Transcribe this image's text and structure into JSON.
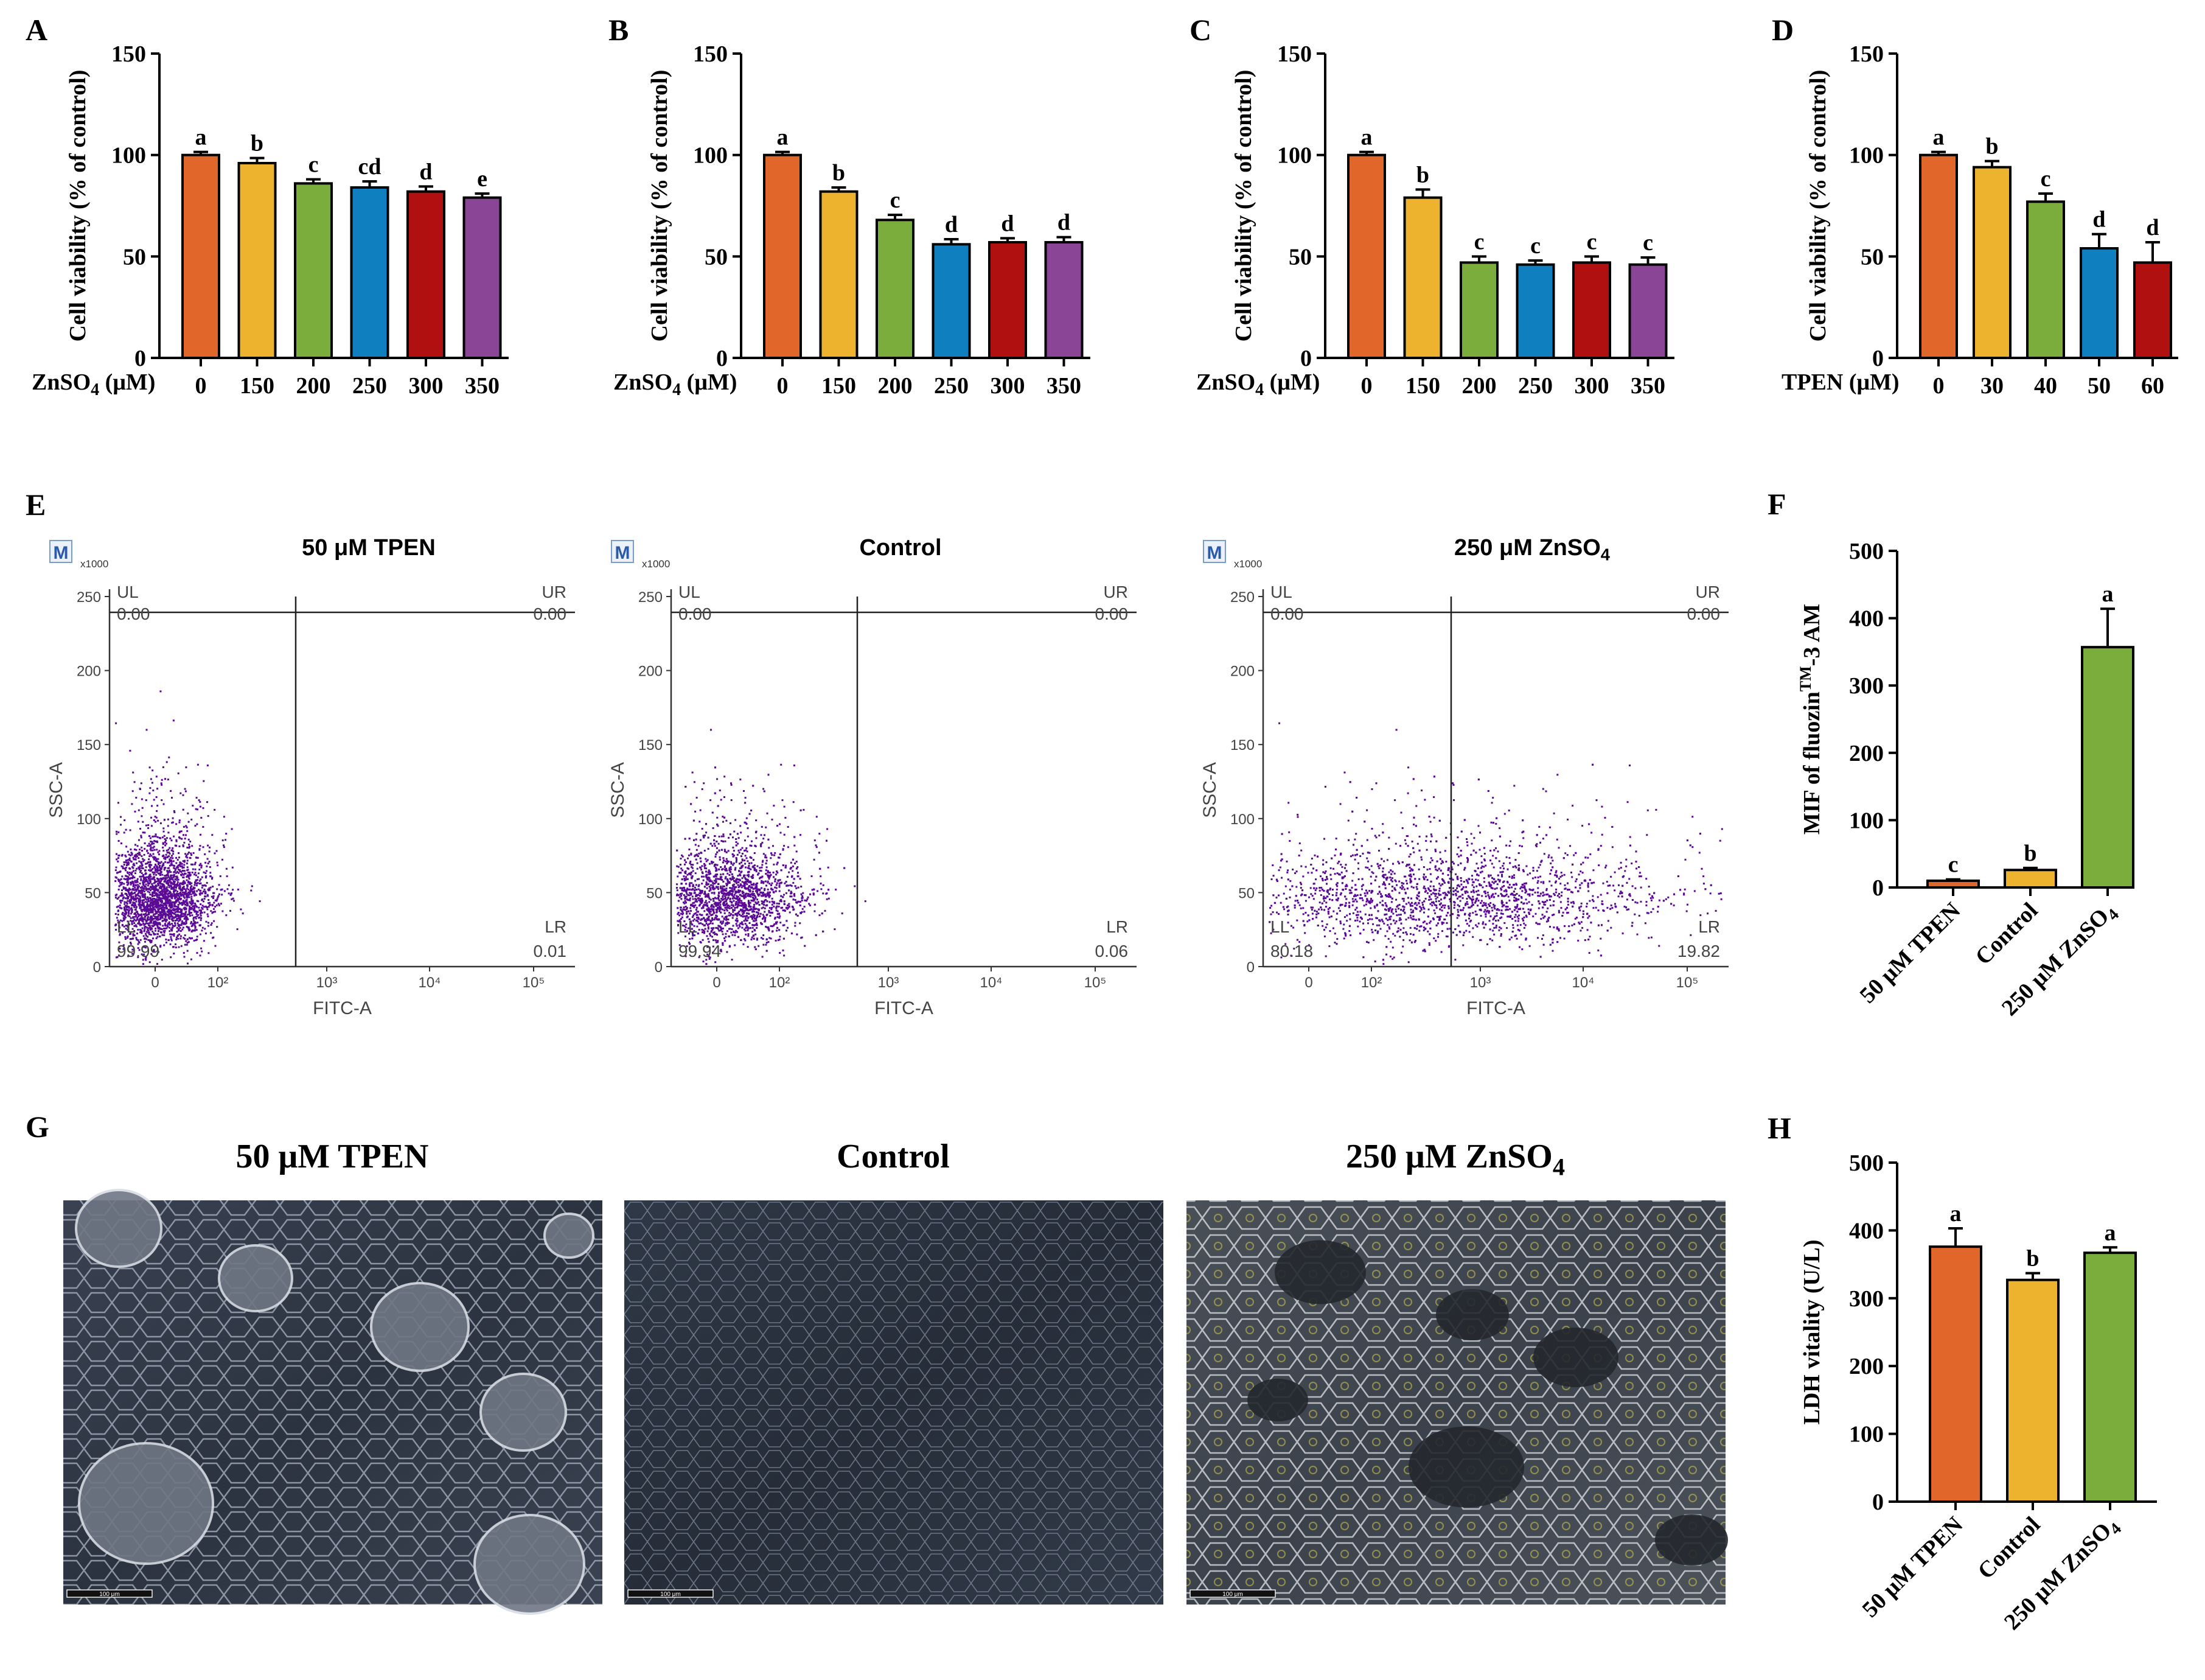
{
  "figure": {
    "colors": {
      "orange": "#E0662A",
      "yellow": "#EDB32F",
      "green": "#7AAD3B",
      "blue": "#0F7FC0",
      "red": "#B0100F",
      "purple": "#8A4596",
      "dot": "#5B0A96",
      "axis": "#000000"
    }
  },
  "chart_data": [
    {
      "panel": "A",
      "type": "bar",
      "xlabel": "ZnSO4 (μM)",
      "ylabel": "Cell viability (% of control)",
      "ylim": [
        0,
        150
      ],
      "yticks": [
        "0",
        "50",
        "100",
        "150"
      ],
      "categories": [
        "0",
        "150",
        "200",
        "250",
        "300",
        "350"
      ],
      "values": [
        100,
        96,
        86,
        84,
        82,
        79
      ],
      "errors": [
        1.5,
        2.5,
        2,
        3,
        2.5,
        2
      ],
      "labels": [
        "a",
        "b",
        "c",
        "cd",
        "d",
        "e"
      ],
      "colors": [
        "orange",
        "yellow",
        "green",
        "blue",
        "red",
        "purple"
      ]
    },
    {
      "panel": "B",
      "type": "bar",
      "xlabel": "ZnSO4 (μM)",
      "ylabel": "Cell viability (% of control)",
      "ylim": [
        0,
        150
      ],
      "yticks": [
        "0",
        "50",
        "100",
        "150"
      ],
      "categories": [
        "0",
        "150",
        "200",
        "250",
        "300",
        "350"
      ],
      "values": [
        100,
        82,
        68,
        56,
        57,
        57
      ],
      "errors": [
        1.5,
        2,
        2.5,
        2.5,
        2,
        2.5
      ],
      "labels": [
        "a",
        "b",
        "c",
        "d",
        "d",
        "d"
      ],
      "colors": [
        "orange",
        "yellow",
        "green",
        "blue",
        "red",
        "purple"
      ]
    },
    {
      "panel": "C",
      "type": "bar",
      "xlabel": "ZnSO4 (μM)",
      "ylabel": "Cell viability (% of control)",
      "ylim": [
        0,
        150
      ],
      "yticks": [
        "0",
        "50",
        "100",
        "150"
      ],
      "categories": [
        "0",
        "150",
        "200",
        "250",
        "300",
        "350"
      ],
      "values": [
        100,
        79,
        47,
        46,
        47,
        46
      ],
      "errors": [
        1.5,
        4,
        3,
        2,
        3,
        3.5
      ],
      "labels": [
        "a",
        "b",
        "c",
        "c",
        "c",
        "c"
      ],
      "colors": [
        "orange",
        "yellow",
        "green",
        "blue",
        "red",
        "purple"
      ]
    },
    {
      "panel": "D",
      "type": "bar",
      "xlabel": "TPEN (μM)",
      "ylabel": "Cell viability (% of control)",
      "ylim": [
        0,
        150
      ],
      "yticks": [
        "0",
        "50",
        "100",
        "150"
      ],
      "categories": [
        "0",
        "30",
        "40",
        "50",
        "60"
      ],
      "values": [
        100,
        94,
        77,
        54,
        47
      ],
      "errors": [
        1.5,
        3,
        4,
        7,
        10
      ],
      "labels": [
        "a",
        "b",
        "c",
        "d",
        "d"
      ],
      "colors": [
        "orange",
        "yellow",
        "green",
        "blue",
        "red"
      ]
    },
    {
      "panel": "E",
      "type": "scatter",
      "subplots": [
        {
          "title": "50 μM TPEN",
          "UL": "0.00",
          "UR": "0.00",
          "LL": "99.99",
          "LR": "0.01",
          "spread": "narrow"
        },
        {
          "title": "Control",
          "UL": "0.00",
          "UR": "0.00",
          "LL": "99.94",
          "LR": "0.06",
          "spread": "medium"
        },
        {
          "title": "250 μM ZnSO4",
          "UL": "0.00",
          "UR": "0.00",
          "LL": "80.18",
          "LR": "19.82",
          "spread": "wide"
        }
      ],
      "quadrant_labels": {
        "ul": "UL",
        "ur": "UR",
        "ll": "LL",
        "lr": "LR"
      },
      "badge": "M",
      "multiplier": "x1000",
      "xlabel": "FITC-A",
      "ylabel": "SSC-A",
      "yticks": [
        "0",
        "50",
        "100",
        "150",
        "200",
        "250"
      ],
      "xticks": [
        "0",
        "10²",
        "10³",
        "10⁴",
        "10⁵"
      ]
    },
    {
      "panel": "F",
      "type": "bar",
      "ylabel": "MIF of fluozin™-3 AM",
      "ylim": [
        0,
        500
      ],
      "yticks": [
        "0",
        "100",
        "200",
        "300",
        "400",
        "500"
      ],
      "categories": [
        "50 μM TPEN",
        "Control",
        "250 μM ZnSO4"
      ],
      "values": [
        10,
        26,
        357
      ],
      "errors": [
        2,
        3,
        57
      ],
      "labels": [
        "c",
        "b",
        "a"
      ],
      "colors": [
        "orange",
        "yellow",
        "green"
      ]
    },
    {
      "panel": "G",
      "type": "image-panel",
      "titles": [
        "50 μM TPEN",
        "Control",
        "250 μM ZnSO4"
      ],
      "scalebar": "100 μm"
    },
    {
      "panel": "H",
      "type": "bar",
      "ylabel": "LDH vitality (U/L)",
      "ylim": [
        0,
        500
      ],
      "yticks": [
        "0",
        "100",
        "200",
        "300",
        "400",
        "500"
      ],
      "categories": [
        "50 μM TPEN",
        "Control",
        "250 μM ZnSO4"
      ],
      "values": [
        376,
        327,
        367
      ],
      "errors": [
        27,
        10,
        8
      ],
      "labels": [
        "a",
        "b",
        "a"
      ],
      "colors": [
        "orange",
        "yellow",
        "green"
      ]
    }
  ]
}
